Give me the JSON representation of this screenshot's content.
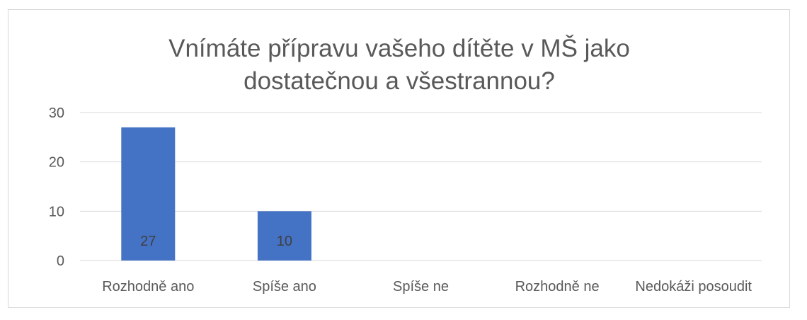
{
  "chart_data": {
    "type": "bar",
    "title_lines": [
      "Vnímáte přípravu vašeho dítěte v MŠ jako",
      "dostatečnou a všestrannou?"
    ],
    "categories": [
      "Rozhodně ano",
      "Spíše ano",
      "Spíše ne",
      "Rozhodně ne",
      "Nedokáži posoudit"
    ],
    "values": [
      27,
      10,
      0,
      0,
      0
    ],
    "data_labels": [
      "27",
      "10",
      "",
      "",
      ""
    ],
    "ylim": [
      0,
      30
    ],
    "yticks": [
      0,
      10,
      20,
      30
    ],
    "grid": true,
    "legend": "none",
    "bar_color": "#4472c4"
  }
}
